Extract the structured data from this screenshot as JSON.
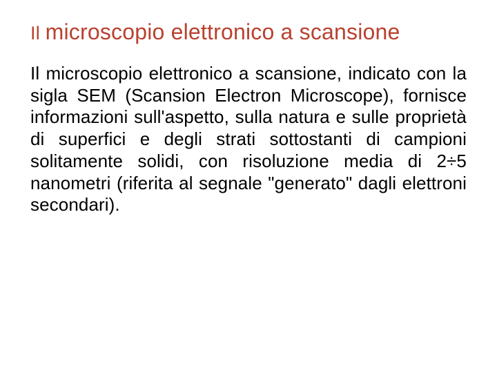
{
  "title_il": "Il ",
  "title_rest": "microscopio elettronico a scansione",
  "title_color": "#b9412f",
  "body_color": "#000000",
  "paragraph": "Il microscopio elettronico a scansione, indicato con la sigla SEM (Scansion Electron Microscope), fornisce informazioni sull'aspetto, sulla natura e sulle proprietà di superfici e degli strati sottostanti di campioni solitamente solidi, con risoluzione media di 2÷5 nanometri (riferita al segnale \"generato\" dagli elettroni secondari)."
}
